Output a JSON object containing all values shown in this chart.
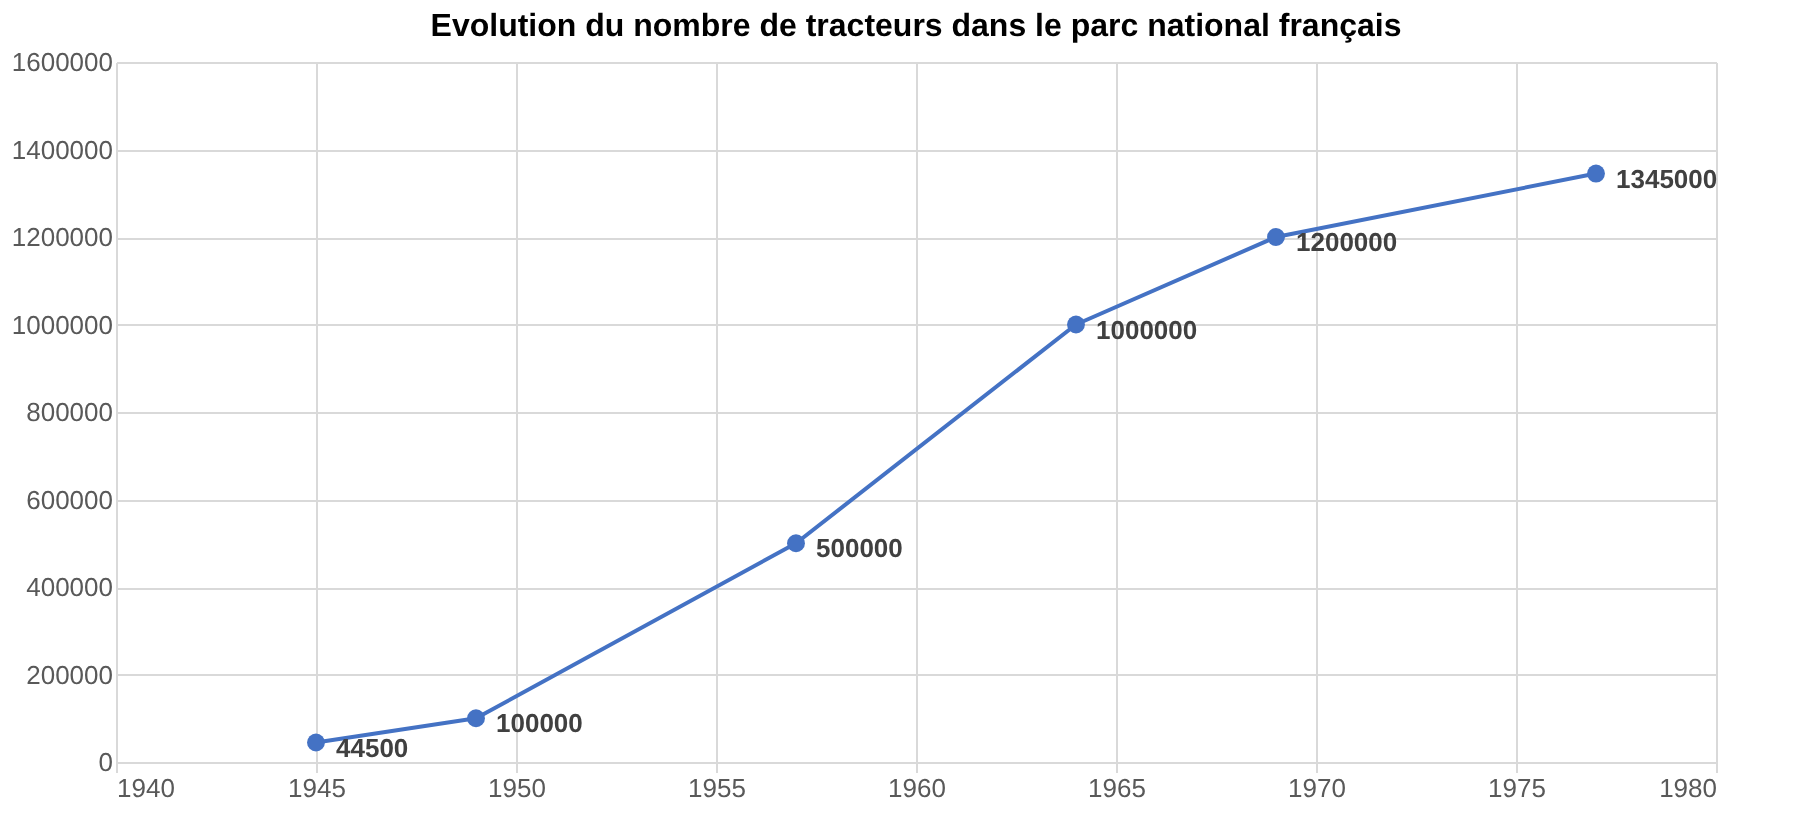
{
  "chart_data": {
    "type": "line",
    "title": "Evolution du nombre de tracteurs dans le parc national français",
    "x": [
      1945,
      1949,
      1957,
      1964,
      1969,
      1977
    ],
    "series": [
      {
        "color": "#4472c4",
        "values": [
          44500,
          100000,
          500000,
          1000000,
          1200000,
          1345000
        ]
      }
    ],
    "xlim": [
      1940,
      1980
    ],
    "xticks": [
      1940,
      1945,
      1950,
      1955,
      1960,
      1965,
      1970,
      1975,
      1980
    ],
    "ylim": [
      0,
      1600000
    ],
    "yticks": [
      0,
      200000,
      400000,
      600000,
      800000,
      1000000,
      1200000,
      1400000,
      1600000
    ],
    "grid": true,
    "marker": "circle",
    "data_labels": true
  }
}
